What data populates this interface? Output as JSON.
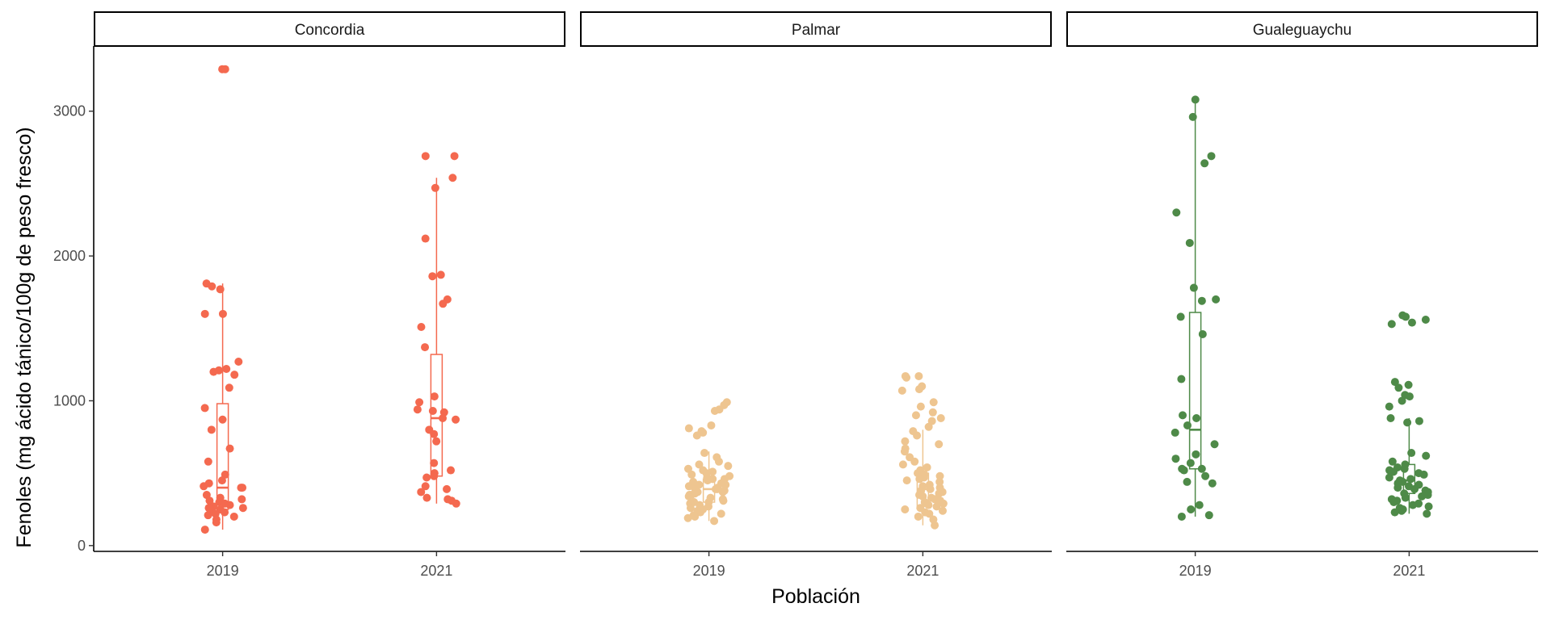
{
  "chart_data": {
    "type": "box-jitter",
    "xlabel": "Población",
    "ylabel": "Fenoles (mg ácido tánico/100g de peso fresco)",
    "categories": [
      "2019",
      "2021"
    ],
    "ylim": [
      -40,
      3450
    ],
    "yticks": [
      0,
      1000,
      2000,
      3000
    ],
    "grid": false,
    "legend": "none",
    "panels": [
      {
        "name": "Concordia",
        "color": "#F4694F",
        "boxes": {
          "2019": {
            "min": 110,
            "q1": 250,
            "median": 400,
            "q3": 980,
            "max": 1810
          },
          "2021": {
            "min": 290,
            "q1": 480,
            "median": 880,
            "q3": 1320,
            "max": 2540
          }
        },
        "points": {
          "2019": [
            3290,
            3290,
            1810,
            1790,
            1770,
            1600,
            1600,
            1270,
            1220,
            1210,
            1200,
            1180,
            1090,
            950,
            870,
            800,
            670,
            580,
            490,
            450,
            430,
            410,
            400,
            400,
            350,
            330,
            320,
            310,
            300,
            290,
            280,
            270,
            260,
            260,
            250,
            240,
            230,
            220,
            210,
            200,
            180,
            160,
            110
          ],
          "2021": [
            2690,
            2690,
            2540,
            2470,
            2120,
            1870,
            1860,
            1700,
            1670,
            1510,
            1370,
            1030,
            990,
            940,
            930,
            920,
            880,
            870,
            800,
            770,
            720,
            570,
            520,
            500,
            480,
            470,
            410,
            390,
            370,
            330,
            320,
            310,
            290
          ]
        }
      },
      {
        "name": "Palmar",
        "color": "#EEC590",
        "boxes": {
          "2019": {
            "min": 170,
            "q1": 300,
            "median": 390,
            "q3": 460,
            "max": 650
          },
          "2021": {
            "min": 140,
            "q1": 270,
            "median": 390,
            "q3": 500,
            "max": 800
          }
        },
        "points": {
          "2019": [
            990,
            970,
            940,
            930,
            830,
            810,
            790,
            780,
            760,
            640,
            610,
            580,
            560,
            550,
            530,
            520,
            510,
            500,
            490,
            480,
            470,
            460,
            460,
            450,
            440,
            430,
            420,
            420,
            410,
            400,
            400,
            390,
            390,
            380,
            370,
            370,
            360,
            350,
            350,
            340,
            330,
            320,
            310,
            300,
            300,
            290,
            280,
            270,
            260,
            250,
            240,
            230,
            220,
            210,
            200,
            190,
            170
          ],
          "2021": [
            1170,
            1170,
            1160,
            1100,
            1080,
            1070,
            990,
            960,
            920,
            900,
            880,
            860,
            820,
            790,
            760,
            720,
            700,
            670,
            650,
            610,
            580,
            560,
            540,
            520,
            500,
            490,
            480,
            470,
            460,
            450,
            440,
            420,
            410,
            400,
            390,
            380,
            370,
            360,
            350,
            340,
            330,
            320,
            310,
            300,
            290,
            280,
            270,
            260,
            250,
            240,
            230,
            220,
            200,
            180,
            140
          ]
        }
      },
      {
        "name": "Gualeguaychu",
        "color": "#4E8A48",
        "boxes": {
          "2019": {
            "min": 200,
            "q1": 530,
            "median": 800,
            "q3": 1610,
            "max": 3080
          },
          "2021": {
            "min": 220,
            "q1": 360,
            "median": 450,
            "q3": 560,
            "max": 880
          }
        },
        "points": {
          "2019": [
            3080,
            2960,
            2690,
            2640,
            2300,
            2090,
            1780,
            1700,
            1690,
            1580,
            1460,
            1150,
            900,
            880,
            830,
            780,
            700,
            630,
            600,
            570,
            530,
            530,
            520,
            480,
            440,
            430,
            280,
            250,
            210,
            200
          ],
          "2021": [
            1590,
            1580,
            1560,
            1540,
            1530,
            1130,
            1110,
            1090,
            1040,
            1030,
            1000,
            960,
            880,
            860,
            850,
            640,
            620,
            580,
            560,
            540,
            530,
            520,
            510,
            500,
            490,
            470,
            460,
            450,
            440,
            430,
            420,
            410,
            400,
            390,
            380,
            370,
            360,
            350,
            340,
            330,
            320,
            310,
            300,
            290,
            280,
            270,
            260,
            250,
            240,
            230,
            220
          ]
        }
      }
    ]
  }
}
